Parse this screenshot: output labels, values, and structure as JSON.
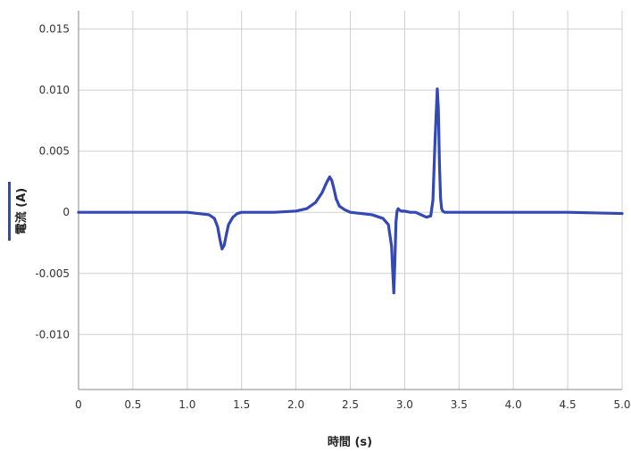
{
  "chart_data": {
    "type": "line",
    "title": "",
    "xlabel": "時間 (s)",
    "ylabel": "電流 (A)",
    "xlim": [
      0,
      5
    ],
    "ylim": [
      -0.0145,
      0.0165
    ],
    "xticks": [
      "0",
      "0.5",
      "1.0",
      "1.5",
      "2.0",
      "2.5",
      "3.0",
      "3.5",
      "4.0",
      "4.5",
      "5.0"
    ],
    "yticks": [
      {
        "value": 0.015,
        "label": "0.015"
      },
      {
        "value": 0.01,
        "label": "0.010"
      },
      {
        "value": 0.005,
        "label": "0.005"
      },
      {
        "value": 0,
        "label": "0"
      },
      {
        "value": -0.005,
        "label": "-0.005"
      },
      {
        "value": -0.01,
        "label": "-0.010"
      }
    ],
    "grid": true,
    "color": "#3347b5",
    "series": [
      {
        "x": [
          0,
          0.5,
          1.0,
          1.1,
          1.2,
          1.25,
          1.28,
          1.3,
          1.32,
          1.34,
          1.36,
          1.38,
          1.42,
          1.46,
          1.5,
          1.6,
          1.8,
          2.0,
          2.1,
          2.18,
          2.24,
          2.28,
          2.31,
          2.33,
          2.35,
          2.37,
          2.4,
          2.45,
          2.5,
          2.6,
          2.7,
          2.8,
          2.85,
          2.88,
          2.89,
          2.9,
          2.91,
          2.92,
          2.93,
          2.94,
          2.95,
          2.97,
          3.0,
          3.05,
          3.1,
          3.15,
          3.2,
          3.24,
          3.26,
          3.28,
          3.3,
          3.31,
          3.32,
          3.33,
          3.34,
          3.35,
          3.37,
          3.4,
          3.5,
          4.0,
          4.5,
          5.0
        ],
        "y": [
          0,
          0,
          0,
          -0.0001,
          -0.0002,
          -0.0005,
          -0.0012,
          -0.0022,
          -0.003,
          -0.0027,
          -0.0018,
          -0.001,
          -0.0004,
          -0.0001,
          0,
          0,
          0,
          0.0001,
          0.0003,
          0.0008,
          0.0016,
          0.0024,
          0.0029,
          0.0026,
          0.0019,
          0.0011,
          0.0005,
          0.0002,
          0,
          -0.0001,
          -0.0002,
          -0.0005,
          -0.001,
          -0.0028,
          -0.0048,
          -0.0066,
          -0.004,
          -0.0008,
          0.0001,
          0.0003,
          0.0002,
          0.0001,
          0.0001,
          0,
          0,
          -0.0002,
          -0.0004,
          -0.0003,
          0.001,
          0.006,
          0.0101,
          0.0085,
          0.004,
          0.0012,
          0.0003,
          0.0001,
          0,
          0,
          0,
          0,
          0,
          -0.0001
        ]
      }
    ]
  }
}
